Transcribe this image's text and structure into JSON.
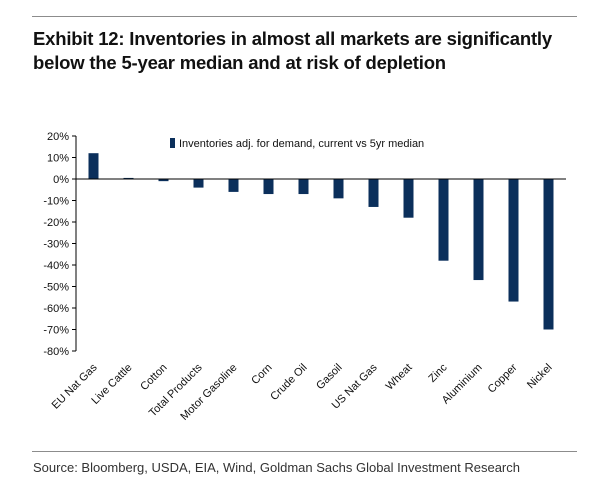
{
  "title": "Exhibit 12: Inventories in almost all markets are significantly below the 5-year median and at risk of depletion",
  "source": "Source: Bloomberg, USDA, EIA, Wind, Goldman Sachs Global Investment Research",
  "colors": {
    "bar": "#0b2f5b",
    "axis": "#000000"
  },
  "chart_data": {
    "type": "bar",
    "categories": [
      "EU Nat Gas",
      "Live Cattle",
      "Cotton",
      "Total Products",
      "Motor Gasoline",
      "Corn",
      "Crude Oil",
      "Gasoil",
      "US Nat Gas",
      "Wheat",
      "Zinc",
      "Aluminium",
      "Copper",
      "Nickel"
    ],
    "series": [
      {
        "name": "Inventories adj. for demand, current vs 5yr median",
        "values": [
          12,
          0.5,
          -1,
          -4,
          -6,
          -7,
          -7,
          -9,
          -13,
          -18,
          -38,
          -47,
          -57,
          -70
        ]
      }
    ],
    "ylim": [
      -80,
      20
    ],
    "yticks": [
      "20%",
      "10%",
      "0%",
      "-10%",
      "-20%",
      "-30%",
      "-40%",
      "-50%",
      "-60%",
      "-70%",
      "-80%"
    ],
    "ytick_values": [
      20,
      10,
      0,
      -10,
      -20,
      -30,
      -40,
      -50,
      -60,
      -70,
      -80
    ],
    "legend_position": "top",
    "grid": false
  }
}
